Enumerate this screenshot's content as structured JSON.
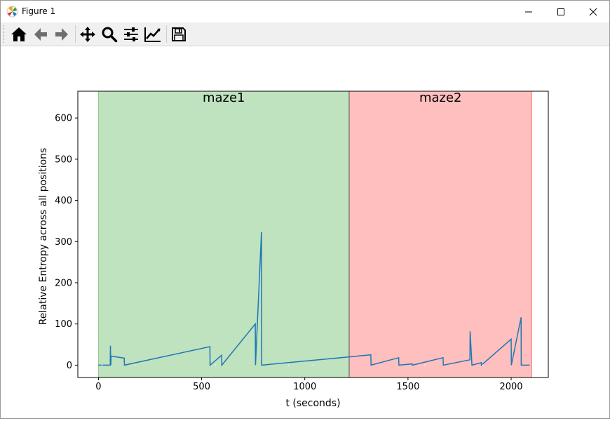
{
  "window": {
    "title": "Figure 1",
    "controls": {
      "minimize": "minimize-icon",
      "maximize": "maximize-icon",
      "close": "close-icon"
    }
  },
  "toolbar": {
    "buttons": [
      {
        "name": "home-button",
        "icon": "home-icon"
      },
      {
        "name": "back-button",
        "icon": "arrow-left-icon"
      },
      {
        "name": "forward-button",
        "icon": "arrow-right-icon"
      },
      {
        "name": "pan-button",
        "icon": "move-icon"
      },
      {
        "name": "zoom-button",
        "icon": "magnifier-icon"
      },
      {
        "name": "configure-subplots-button",
        "icon": "sliders-icon"
      },
      {
        "name": "edit-axis-button",
        "icon": "line-chart-icon"
      },
      {
        "name": "save-button",
        "icon": "floppy-disk-icon"
      }
    ]
  },
  "chart_data": {
    "type": "line",
    "title": "",
    "xlabel": "t (seconds)",
    "ylabel": "Relative Entropy across all positions",
    "xlim": [
      -100,
      2180
    ],
    "ylim": [
      -30,
      665
    ],
    "xticks": [
      0,
      500,
      1000,
      1500,
      2000
    ],
    "yticks": [
      0,
      100,
      200,
      300,
      400,
      500,
      600
    ],
    "line_color": "#1f77b4",
    "regions": [
      {
        "label": "maze1",
        "x_start": 0,
        "x_end": 1215,
        "color": "#2ca02c",
        "alpha": 0.3
      },
      {
        "label": "maze2",
        "x_start": 1215,
        "x_end": 2100,
        "color": "#ff0000",
        "alpha": 0.25
      }
    ],
    "gaps": [
      [
        15,
        20
      ],
      [
        175,
        180
      ],
      [
        565,
        570
      ],
      [
        920,
        925
      ],
      [
        1040,
        1045
      ],
      [
        1580,
        1585
      ],
      [
        1860,
        1865
      ]
    ],
    "series": [
      {
        "x": [
          0,
          57,
          58,
          60,
          61,
          125,
          126,
          540,
          541,
          597,
          598,
          760,
          761,
          790,
          791,
          1320,
          1321,
          1455,
          1456,
          1520,
          1521,
          1670,
          1671,
          1800,
          1801,
          1810,
          1811,
          1855,
          1856,
          2000,
          2001,
          2048,
          2049,
          2090
        ],
        "y": [
          0,
          0,
          47,
          0,
          22,
          17,
          0,
          45,
          0,
          24,
          0,
          100,
          0,
          323,
          0,
          25,
          0,
          18,
          0,
          3,
          0,
          18,
          0,
          13,
          82,
          0,
          0,
          6,
          0,
          63,
          0,
          116,
          0,
          0
        ]
      }
    ]
  }
}
